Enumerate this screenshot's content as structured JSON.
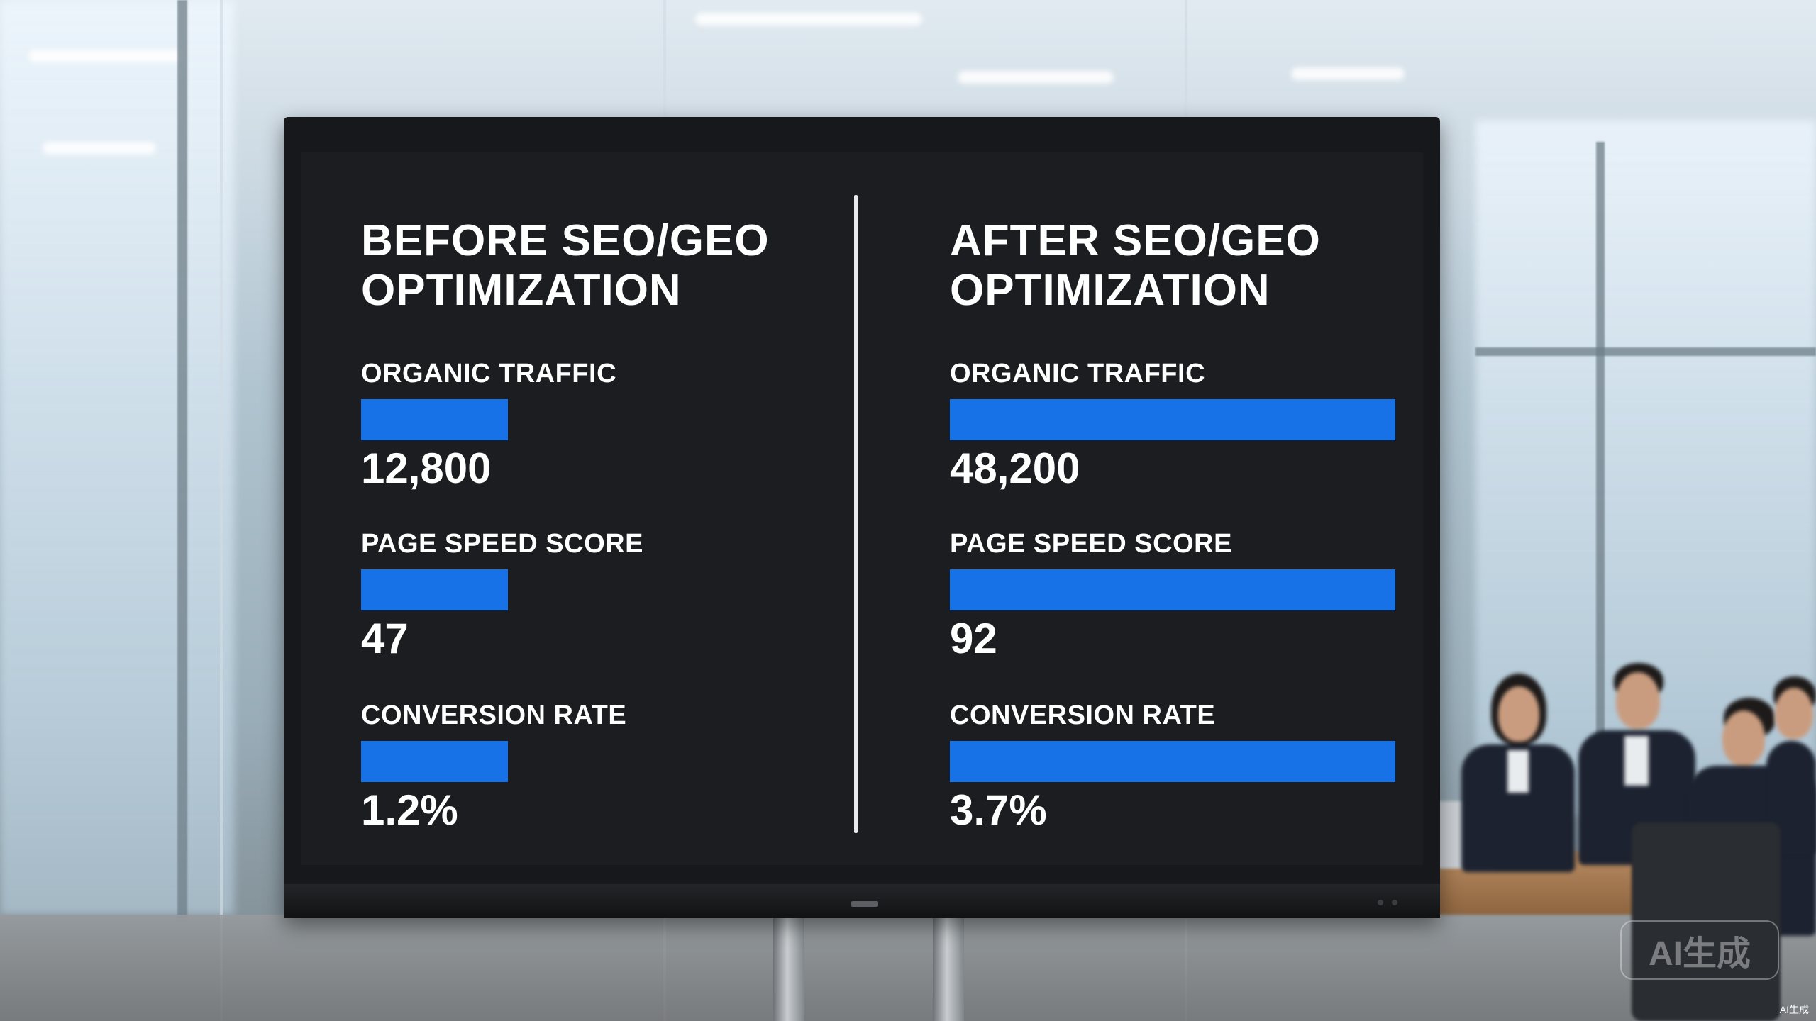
{
  "screen": {
    "before": {
      "title": "BEFORE SEO/GEO OPTIMIZATION",
      "metrics": [
        {
          "label": "ORGANIC TRAFFIC",
          "value": "12,800",
          "bar_fraction": 0.33
        },
        {
          "label": "PAGE SPEED SCORE",
          "value": "47",
          "bar_fraction": 0.33
        },
        {
          "label": "CONVERSION RATE",
          "value": "1.2%",
          "bar_fraction": 0.33
        }
      ]
    },
    "after": {
      "title": "AFTER SEO/GEO OPTIMIZATION",
      "metrics": [
        {
          "label": "ORGANIC TRAFFIC",
          "value": "48,200",
          "bar_fraction": 1.0
        },
        {
          "label": "PAGE SPEED SCORE",
          "value": "92",
          "bar_fraction": 1.0
        },
        {
          "label": "CONVERSION RATE",
          "value": "3.7%",
          "bar_fraction": 1.0
        }
      ]
    }
  },
  "colors": {
    "bar": "#1772e8",
    "screen_background": "#1b1d21",
    "text": "#ffffff"
  },
  "watermark": {
    "large": "AI生成",
    "small": "AI生成"
  }
}
